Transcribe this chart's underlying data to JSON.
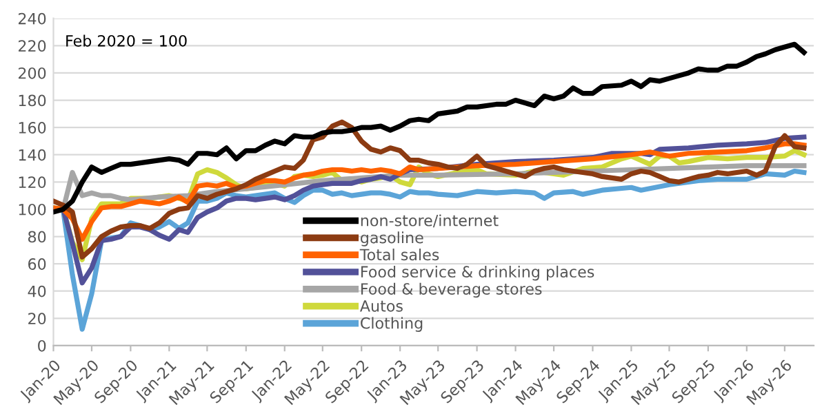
{
  "chart_data": {
    "type": "line",
    "annotations": [
      "Feb 2020 = 100"
    ],
    "xlim": [
      "2020-01",
      "2026-08"
    ],
    "xticks": [
      {
        "value": "2020-01",
        "label": "Jan-20"
      },
      {
        "value": "2020-05",
        "label": "May-20"
      },
      {
        "value": "2020-09",
        "label": "Sep-20"
      },
      {
        "value": "2021-01",
        "label": "Jan-21"
      },
      {
        "value": "2021-05",
        "label": "May-21"
      },
      {
        "value": "2021-09",
        "label": "Sep-21"
      },
      {
        "value": "2022-01",
        "label": "Jan-22"
      },
      {
        "value": "2022-05",
        "label": "May-22"
      },
      {
        "value": "2022-09",
        "label": "Sep-22"
      },
      {
        "value": "2023-01",
        "label": "Jan-23"
      },
      {
        "value": "2023-05",
        "label": "May-23"
      },
      {
        "value": "2023-09",
        "label": "Sep-23"
      },
      {
        "value": "2024-01",
        "label": "Jan-24"
      },
      {
        "value": "2024-05",
        "label": "May-24"
      },
      {
        "value": "2024-09",
        "label": "Sep-24"
      },
      {
        "value": "2025-01",
        "label": "Jan-25"
      },
      {
        "value": "2025-05",
        "label": "May-25"
      },
      {
        "value": "2025-09",
        "label": "Sep-25"
      },
      {
        "value": "2026-01",
        "label": "Jan-26"
      },
      {
        "value": "2026-05",
        "label": "May-26"
      }
    ],
    "ylim": [
      0,
      240
    ],
    "yticks": [
      0,
      20,
      40,
      60,
      80,
      100,
      120,
      140,
      160,
      180,
      200,
      220,
      240
    ],
    "grid": "y",
    "legend": "bottom right",
    "marker": "none",
    "line_style": "solid",
    "series": [
      {
        "name": "non-store/internet",
        "color": "#000000",
        "x": [
          "2020-01",
          "2020-02",
          "2020-03",
          "2020-04",
          "2020-05",
          "2020-06",
          "2020-07",
          "2020-08",
          "2020-09",
          "2020-11",
          "2021-01",
          "2021-02",
          "2021-03",
          "2021-04",
          "2021-05",
          "2021-06",
          "2021-07",
          "2021-08",
          "2021-09",
          "2021-10",
          "2021-11",
          "2021-12",
          "2022-01",
          "2022-02",
          "2022-03",
          "2022-04",
          "2022-05",
          "2022-06",
          "2022-07",
          "2022-08",
          "2022-09",
          "2022-10",
          "2022-11",
          "2022-12",
          "2023-01",
          "2023-02",
          "2023-03",
          "2023-04",
          "2023-05",
          "2023-07",
          "2023-08",
          "2023-09",
          "2023-11",
          "2023-12",
          "2024-01",
          "2024-03",
          "2024-04",
          "2024-05",
          "2024-06",
          "2024-07",
          "2024-08",
          "2024-09",
          "2024-10",
          "2024-12",
          "2025-01",
          "2025-02",
          "2025-03",
          "2025-04",
          "2025-05",
          "2025-06",
          "2025-07",
          "2025-08",
          "2025-09",
          "2025-10",
          "2025-11",
          "2025-12",
          "2026-01",
          "2026-02",
          "2026-03",
          "2026-04",
          "2026-05",
          "2026-06",
          "2026-07"
        ],
        "values": [
          98,
          100,
          106,
          120,
          131,
          127,
          130,
          133,
          133,
          135,
          137,
          136,
          133,
          141,
          141,
          140,
          145,
          137,
          143,
          143,
          147,
          150,
          148,
          154,
          153,
          153,
          156,
          157,
          157,
          158,
          160,
          160,
          161,
          158,
          161,
          165,
          166,
          165,
          170,
          172,
          175,
          175,
          177,
          177,
          180,
          176,
          183,
          181,
          183,
          189,
          185,
          185,
          190,
          191,
          194,
          190,
          195,
          194,
          196,
          198,
          200,
          203,
          202,
          202,
          205,
          205,
          208,
          212,
          214,
          217,
          219,
          221,
          215
        ]
      },
      {
        "name": "gasoline",
        "color": "#8c3b12",
        "x": [
          "2020-01",
          "2020-02",
          "2020-03",
          "2020-04",
          "2020-05",
          "2020-06",
          "2020-07",
          "2020-08",
          "2020-09",
          "2020-10",
          "2020-11",
          "2020-12",
          "2021-01",
          "2021-02",
          "2021-03",
          "2021-04",
          "2021-05",
          "2021-06",
          "2021-07",
          "2021-08",
          "2021-09",
          "2021-10",
          "2021-11",
          "2021-12",
          "2022-01",
          "2022-02",
          "2022-03",
          "2022-04",
          "2022-05",
          "2022-06",
          "2022-07",
          "2022-08",
          "2022-09",
          "2022-10",
          "2022-11",
          "2022-12",
          "2023-01",
          "2023-02",
          "2023-03",
          "2023-04",
          "2023-05",
          "2023-06",
          "2023-07",
          "2023-08",
          "2023-09",
          "2023-10",
          "2023-11",
          "2023-12",
          "2024-01",
          "2024-02",
          "2024-03",
          "2024-04",
          "2024-05",
          "2024-06",
          "2024-07",
          "2024-08",
          "2024-09",
          "2024-10",
          "2024-11",
          "2024-12",
          "2025-01",
          "2025-02",
          "2025-03",
          "2025-04",
          "2025-05",
          "2025-06",
          "2025-07",
          "2025-08",
          "2025-09",
          "2025-10",
          "2025-11",
          "2025-12",
          "2026-01",
          "2026-02",
          "2026-03",
          "2026-04",
          "2026-05",
          "2026-06",
          "2026-07"
        ],
        "values": [
          106,
          103,
          98,
          65,
          71,
          80,
          84,
          87,
          88,
          88,
          86,
          90,
          97,
          100,
          101,
          110,
          108,
          111,
          113,
          115,
          118,
          122,
          125,
          128,
          131,
          130,
          136,
          151,
          153,
          161,
          164,
          160,
          150,
          144,
          142,
          145,
          143,
          136,
          136,
          134,
          133,
          131,
          130,
          133,
          139,
          132,
          130,
          128,
          126,
          124,
          128,
          130,
          131,
          129,
          128,
          127,
          126,
          124,
          123,
          122,
          126,
          128,
          127,
          124,
          121,
          120,
          122,
          124,
          125,
          127,
          126,
          127,
          128,
          125,
          128,
          146,
          154,
          146,
          145
        ]
      },
      {
        "name": "Total sales",
        "color": "#ff6200",
        "x": [
          "2020-01",
          "2020-02",
          "2020-03",
          "2020-04",
          "2020-05",
          "2020-06",
          "2020-07",
          "2020-08",
          "2020-09",
          "2020-10",
          "2020-11",
          "2020-12",
          "2021-01",
          "2021-02",
          "2021-03",
          "2021-04",
          "2021-05",
          "2021-06",
          "2021-07",
          "2021-08",
          "2021-09",
          "2021-10",
          "2021-11",
          "2021-12",
          "2022-01",
          "2022-02",
          "2022-03",
          "2022-04",
          "2022-05",
          "2022-06",
          "2022-07",
          "2022-08",
          "2022-09",
          "2022-10",
          "2022-11",
          "2022-12",
          "2023-01",
          "2023-02",
          "2023-03",
          "2023-05",
          "2023-09",
          "2024-01",
          "2024-05",
          "2024-09",
          "2025-01",
          "2025-03",
          "2025-05",
          "2025-07",
          "2025-10",
          "2026-01",
          "2026-03",
          "2026-05",
          "2026-06",
          "2026-07"
        ],
        "values": [
          101,
          100,
          93,
          78,
          91,
          101,
          102,
          102,
          104,
          106,
          105,
          104,
          106,
          109,
          105,
          117,
          118,
          117,
          119,
          116,
          117,
          119,
          121,
          121,
          120,
          123,
          125,
          126,
          128,
          129,
          129,
          128,
          129,
          128,
          129,
          128,
          126,
          131,
          129,
          130,
          132,
          133,
          135,
          137,
          140,
          142,
          139,
          141,
          142,
          143,
          145,
          148,
          148,
          147
        ]
      },
      {
        "name": "Food service & drinking places",
        "color": "#525199",
        "x": [
          "2020-01",
          "2020-02",
          "2020-03",
          "2020-04",
          "2020-05",
          "2020-06",
          "2020-07",
          "2020-08",
          "2020-09",
          "2020-10",
          "2020-11",
          "2020-12",
          "2021-01",
          "2021-02",
          "2021-03",
          "2021-04",
          "2021-05",
          "2021-06",
          "2021-07",
          "2021-08",
          "2021-09",
          "2021-10",
          "2021-11",
          "2021-12",
          "2022-01",
          "2022-02",
          "2022-03",
          "2022-04",
          "2022-05",
          "2022-06",
          "2022-07",
          "2022-08",
          "2022-09",
          "2022-10",
          "2022-11",
          "2022-12",
          "2023-01",
          "2023-02",
          "2023-05",
          "2023-09",
          "2024-01",
          "2024-05",
          "2024-09",
          "2024-11",
          "2025-02",
          "2025-03",
          "2025-04",
          "2025-07",
          "2025-10",
          "2026-01",
          "2026-03",
          "2026-05",
          "2026-07"
        ],
        "values": [
          100,
          100,
          75,
          46,
          57,
          77,
          78,
          80,
          87,
          87,
          85,
          81,
          78,
          85,
          83,
          94,
          98,
          101,
          106,
          108,
          108,
          107,
          108,
          109,
          107,
          110,
          114,
          117,
          118,
          119,
          119,
          119,
          121,
          122,
          124,
          122,
          126,
          129,
          130,
          133,
          135,
          136,
          138,
          141,
          141,
          140,
          144,
          145,
          147,
          148,
          149,
          152,
          153
        ]
      },
      {
        "name": "Food & beverage stores",
        "color": "#a6a6a6",
        "x": [
          "2020-01",
          "2020-02",
          "2020-03",
          "2020-04",
          "2020-05",
          "2020-06",
          "2020-07",
          "2020-08",
          "2020-09",
          "2020-12",
          "2021-03",
          "2021-06",
          "2021-09",
          "2022-01",
          "2022-05",
          "2022-09",
          "2023-01",
          "2023-05",
          "2024-01",
          "2024-09",
          "2025-01",
          "2025-05",
          "2025-09",
          "2026-01",
          "2026-07"
        ],
        "values": [
          99,
          100,
          127,
          110,
          112,
          110,
          110,
          108,
          107,
          109,
          110,
          113,
          115,
          118,
          121,
          123,
          125,
          125,
          126,
          128,
          129,
          130,
          131,
          132,
          132
        ]
      },
      {
        "name": "Autos",
        "color": "#cfd93c",
        "x": [
          "2020-01",
          "2020-02",
          "2020-03",
          "2020-04",
          "2020-05",
          "2020-06",
          "2020-07",
          "2020-08",
          "2020-09",
          "2020-10",
          "2020-11",
          "2020-12",
          "2021-01",
          "2021-02",
          "2021-03",
          "2021-04",
          "2021-05",
          "2021-06",
          "2021-07",
          "2021-08",
          "2021-09",
          "2021-10",
          "2021-11",
          "2021-12",
          "2022-01",
          "2022-02",
          "2022-03",
          "2022-04",
          "2022-05",
          "2022-06",
          "2022-07",
          "2022-08",
          "2022-09",
          "2022-10",
          "2022-11",
          "2022-12",
          "2023-01",
          "2023-02",
          "2023-03",
          "2023-04",
          "2023-05",
          "2023-07",
          "2023-09",
          "2023-10",
          "2024-01",
          "2024-03",
          "2024-05",
          "2024-06",
          "2024-08",
          "2024-10",
          "2024-12",
          "2025-01",
          "2025-03",
          "2025-04",
          "2025-05",
          "2025-06",
          "2025-07",
          "2025-09",
          "2025-11",
          "2026-01",
          "2026-03",
          "2026-05",
          "2026-06",
          "2026-07"
        ],
        "values": [
          101,
          100,
          76,
          63,
          93,
          104,
          104,
          104,
          108,
          108,
          108,
          109,
          110,
          108,
          106,
          126,
          129,
          127,
          123,
          118,
          115,
          116,
          118,
          119,
          117,
          124,
          125,
          124,
          125,
          127,
          121,
          122,
          120,
          122,
          123,
          125,
          120,
          118,
          131,
          126,
          124,
          127,
          129,
          126,
          125,
          128,
          126,
          125,
          130,
          131,
          137,
          139,
          133,
          139,
          139,
          134,
          135,
          138,
          137,
          138,
          138,
          139,
          143,
          140
        ]
      },
      {
        "name": "Clothing",
        "color": "#5ba4d8",
        "x": [
          "2020-01",
          "2020-02",
          "2020-03",
          "2020-04",
          "2020-05",
          "2020-06",
          "2020-07",
          "2020-08",
          "2020-09",
          "2020-10",
          "2020-11",
          "2020-12",
          "2021-01",
          "2021-02",
          "2021-03",
          "2021-04",
          "2021-05",
          "2021-06",
          "2021-07",
          "2021-08",
          "2021-09",
          "2021-10",
          "2021-11",
          "2021-12",
          "2022-01",
          "2022-02",
          "2022-03",
          "2022-04",
          "2022-05",
          "2022-06",
          "2022-07",
          "2022-08",
          "2022-09",
          "2022-10",
          "2022-11",
          "2022-12",
          "2023-01",
          "2023-02",
          "2023-03",
          "2023-04",
          "2023-05",
          "2023-07",
          "2023-09",
          "2023-11",
          "2024-01",
          "2024-03",
          "2024-04",
          "2024-05",
          "2024-07",
          "2024-08",
          "2024-10",
          "2025-01",
          "2025-02",
          "2025-05",
          "2025-08",
          "2025-10",
          "2026-01",
          "2026-03",
          "2026-05",
          "2026-06",
          "2026-07"
        ],
        "values": [
          101,
          99,
          52,
          12,
          38,
          77,
          79,
          80,
          90,
          88,
          85,
          87,
          91,
          86,
          90,
          106,
          106,
          108,
          112,
          110,
          109,
          110,
          111,
          112,
          108,
          105,
          110,
          114,
          114,
          111,
          112,
          110,
          111,
          112,
          112,
          111,
          109,
          113,
          112,
          112,
          111,
          110,
          113,
          112,
          113,
          112,
          108,
          112,
          113,
          111,
          114,
          116,
          114,
          118,
          121,
          122,
          122,
          126,
          125,
          128,
          127
        ]
      }
    ]
  }
}
